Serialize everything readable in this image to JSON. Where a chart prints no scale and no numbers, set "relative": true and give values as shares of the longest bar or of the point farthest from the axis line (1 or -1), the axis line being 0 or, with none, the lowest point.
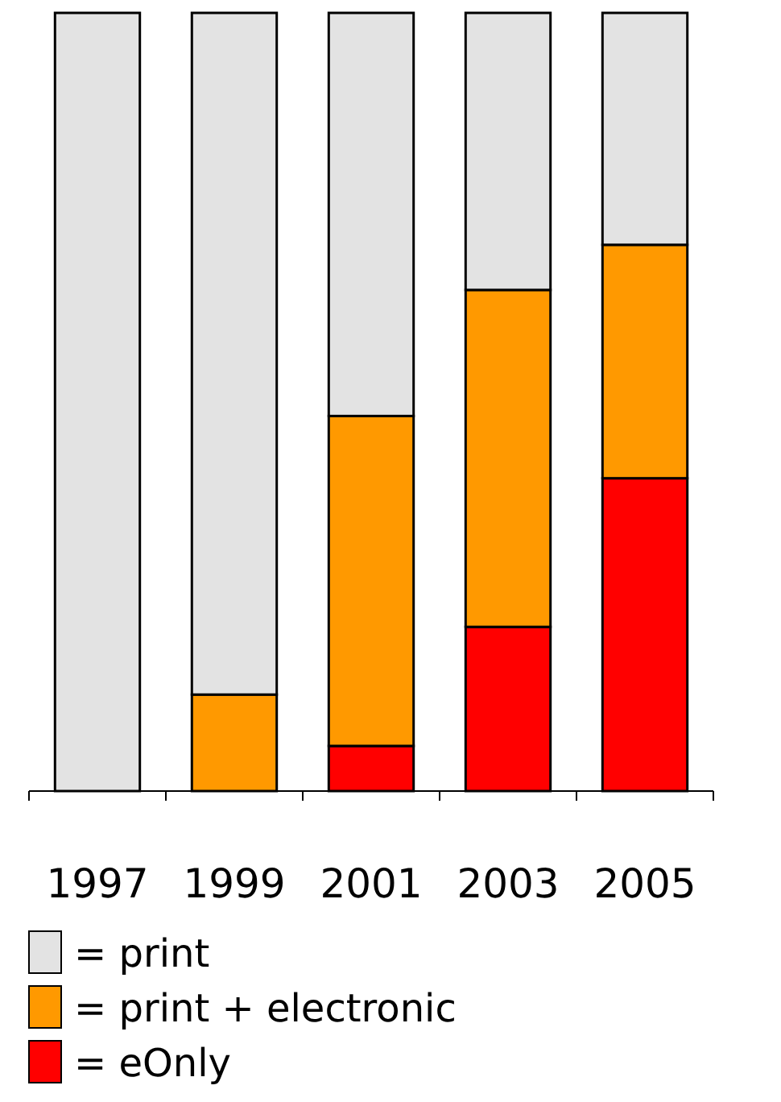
{
  "chart_data": {
    "type": "bar",
    "stacked": true,
    "relative": true,
    "legend": "bottom left",
    "categories": [
      "1997",
      "1999",
      "2001",
      "2003",
      "2005"
    ],
    "series": [
      {
        "name": "= eOnly",
        "color": "#ff0000",
        "values": [
          0,
          0,
          0.058,
          0.211,
          0.402
        ]
      },
      {
        "name": "= print + electronic",
        "color": "#ff9900",
        "values": [
          0,
          0.124,
          0.424,
          0.433,
          0.3
        ]
      },
      {
        "name": "= print",
        "color": "#e3e3e3",
        "values": [
          1,
          0.876,
          0.518,
          0.356,
          0.298
        ]
      }
    ]
  }
}
